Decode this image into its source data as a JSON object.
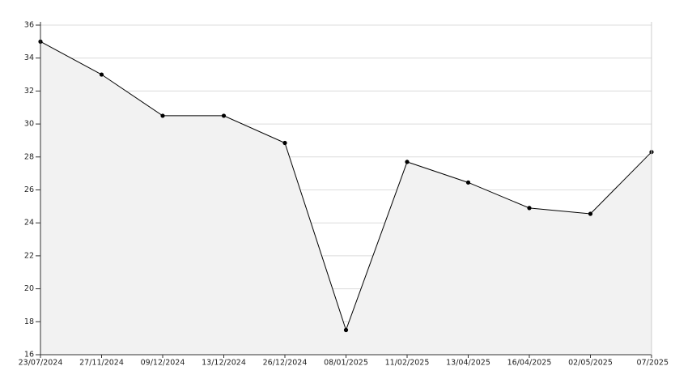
{
  "chart_data": {
    "type": "line",
    "categories": [
      "23/07/2024",
      "27/11/2024",
      "09/12/2024",
      "13/12/2024",
      "26/12/2024",
      "08/01/2025",
      "11/02/2025",
      "13/04/2025",
      "16/04/2025",
      "02/05/2025",
      "07/2025"
    ],
    "values": [
      35,
      33,
      30.5,
      30.5,
      28.85,
      17.5,
      27.7,
      26.45,
      24.9,
      24.55,
      28.3
    ],
    "color": "#000000",
    "fill": "#f2f2f2",
    "ylim": [
      16,
      36
    ],
    "yticks": [
      16,
      18,
      20,
      22,
      24,
      26,
      28,
      30,
      32,
      34,
      36
    ],
    "grid": true
  }
}
